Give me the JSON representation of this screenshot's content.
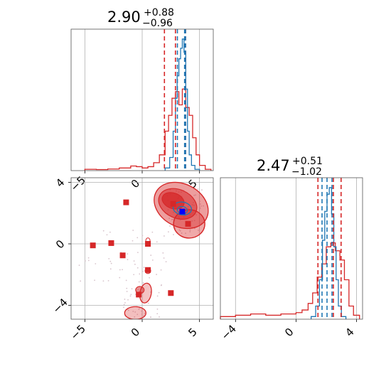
{
  "colors": {
    "red": "#d62728",
    "blue": "#1f77b4",
    "truth": "#0000ff"
  },
  "chart_data": [
    {
      "type": "histogram",
      "panel": "top-left",
      "title": {
        "median": "2.90",
        "plus": "+0.88",
        "minus": "−0.96"
      },
      "xlim": [
        -6.2,
        6.2
      ],
      "xticks": [
        -5,
        0,
        5
      ],
      "grid": true,
      "series": [
        {
          "color": "red",
          "bin_edges": [
            -5,
            -4,
            -3,
            -2,
            -1,
            -0.5,
            0,
            0.5,
            1,
            1.5,
            2,
            2.3,
            2.6,
            2.9,
            3.2,
            3.5,
            3.8,
            4.1,
            4.4,
            4.7,
            5,
            5.5,
            6
          ],
          "counts": [
            0.01,
            0.008,
            0.012,
            0.02,
            0.035,
            0.03,
            0.02,
            0.03,
            0.06,
            0.12,
            0.3,
            0.42,
            0.55,
            0.6,
            0.5,
            0.62,
            0.48,
            0.42,
            0.25,
            0.12,
            0.04,
            0.01
          ],
          "quantiles": [
            1.94,
            2.9,
            3.78
          ]
        },
        {
          "color": "blue",
          "bin_edges": [
            2.0,
            2.4,
            2.7,
            2.9,
            3.05,
            3.2,
            3.35,
            3.5,
            3.65,
            3.8,
            3.95,
            4.1,
            4.3,
            4.6,
            5.0
          ],
          "counts": [
            0.02,
            0.1,
            0.3,
            0.55,
            0.72,
            0.85,
            0.93,
            1.0,
            0.9,
            0.62,
            0.3,
            0.12,
            0.04,
            0.01
          ],
          "quantiles": [
            3.07,
            3.7,
            3.78
          ]
        }
      ]
    },
    {
      "type": "scatter-contour",
      "panel": "bottom-left",
      "xlim": [
        -6.2,
        6.2
      ],
      "ylim": [
        -4.9,
        4.3
      ],
      "xticks": [
        -5,
        0,
        5
      ],
      "yticks": [
        -4,
        0,
        4
      ],
      "grid": true,
      "red_points": [
        {
          "x": -1.4,
          "y": 2.7
        },
        {
          "x": 2.7,
          "y": 2.6
        },
        {
          "x": 4.0,
          "y": 1.3
        },
        {
          "x": -4.3,
          "y": -0.1
        },
        {
          "x": -2.7,
          "y": 0.05
        },
        {
          "x": -1.7,
          "y": -0.75
        },
        {
          "x": 0.5,
          "y": 0.0
        },
        {
          "x": 0.5,
          "y": -1.7
        },
        {
          "x": 2.5,
          "y": -3.2
        },
        {
          "x": -0.3,
          "y": -3.3
        }
      ],
      "truth_point": {
        "x": 3.5,
        "y": 2.1
      }
    },
    {
      "type": "histogram",
      "panel": "bottom-right",
      "title": {
        "median": "2.47",
        "plus": "+0.51",
        "minus": "−1.02"
      },
      "xlim": [
        -5.0,
        4.4
      ],
      "xticks": [
        -4,
        0,
        4
      ],
      "grid": true,
      "series": [
        {
          "color": "red",
          "bin_edges": [
            -5,
            -4,
            -3,
            -2,
            -1,
            -0.5,
            0,
            0.4,
            0.8,
            1.1,
            1.4,
            1.7,
            2.0,
            2.3,
            2.6,
            2.9,
            3.2,
            3.5,
            3.8,
            4.2
          ],
          "counts": [
            0.02,
            0.03,
            0.04,
            0.03,
            0.04,
            0.04,
            0.05,
            0.07,
            0.12,
            0.2,
            0.32,
            0.42,
            0.55,
            0.58,
            0.52,
            0.45,
            0.3,
            0.1,
            0.03
          ],
          "quantiles": [
            1.45,
            2.47,
            2.98
          ]
        },
        {
          "color": "blue",
          "bin_edges": [
            1.0,
            1.3,
            1.55,
            1.75,
            1.9,
            2.05,
            2.2,
            2.35,
            2.5,
            2.65,
            2.8,
            3.0,
            3.3
          ],
          "counts": [
            0.02,
            0.1,
            0.3,
            0.6,
            0.82,
            0.95,
            1.0,
            0.8,
            0.55,
            0.3,
            0.1,
            0.02
          ],
          "quantiles": [
            1.72,
            2.05,
            2.38
          ]
        }
      ]
    }
  ]
}
